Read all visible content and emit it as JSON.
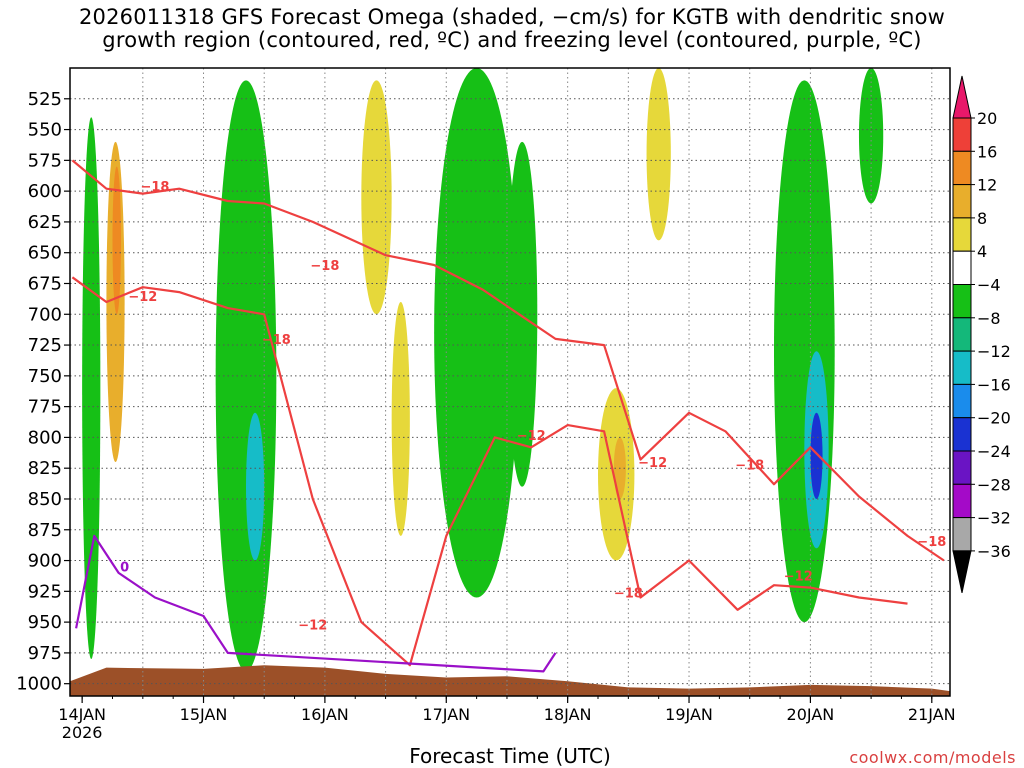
{
  "chart_data": {
    "type": "heatmap",
    "title_line1": "2026011318 GFS Forecast Omega (shaded, −cm/s) for KGTB with dendritic snow",
    "title_line2": "growth region (contoured, red, ºC) and freezing level (contoured, purple, ºC)",
    "xlabel": "Forecast Time (UTC)",
    "credit": "coolwx.com/models",
    "x_ticks": [
      "14JAN",
      "15JAN",
      "16JAN",
      "17JAN",
      "18JAN",
      "19JAN",
      "20JAN",
      "21JAN"
    ],
    "x_tick_sublabel": "2026",
    "x_range_days": [
      13.9,
      21.15
    ],
    "y_ticks": [
      525,
      550,
      575,
      600,
      625,
      650,
      675,
      700,
      725,
      750,
      775,
      800,
      825,
      850,
      875,
      900,
      925,
      950,
      975,
      1000
    ],
    "y_range_hPa": [
      500,
      1010
    ],
    "colorbar_levels": [
      "20",
      "16",
      "12",
      "8",
      "4",
      "−4",
      "−8",
      "−12",
      "−16",
      "−20",
      "−24",
      "−28",
      "−32",
      "−36"
    ],
    "colorbar_colors": [
      "#e8186a",
      "#ee4038",
      "#ee8a22",
      "#e8ae2c",
      "#e6d83a",
      "#ffffff",
      "#16c016",
      "#14b87a",
      "#16bcc8",
      "#1a8cec",
      "#1a32d2",
      "#6a14c4",
      "#a40ac8",
      "#a8a8a8",
      "#000000"
    ],
    "contour_labels_red": [
      "−18",
      "−12",
      "−18",
      "−18",
      "−12",
      "−12",
      "−18",
      "−12",
      "−18",
      "−12",
      "−18"
    ],
    "contour_labels_purple": [
      "0"
    ],
    "series": [
      {
        "name": "dendritic_growth_top (−18C level, hPa)",
        "x_day": [
          13.92,
          14.2,
          14.5,
          14.8,
          15.2,
          15.5,
          15.9,
          16.5,
          16.9,
          17.3,
          17.6,
          17.9,
          18.3,
          18.6,
          19.0,
          19.3,
          19.7,
          20.0,
          20.4,
          20.8,
          21.1
        ],
        "pressure_hPa": [
          575,
          598,
          602,
          598,
          608,
          610,
          625,
          652,
          660,
          680,
          700,
          720,
          725,
          818,
          780,
          795,
          838,
          808,
          848,
          880,
          900
        ]
      },
      {
        "name": "dendritic_growth_bottom (−12C level, hPa)",
        "x_day": [
          13.92,
          14.2,
          14.5,
          14.8,
          15.2,
          15.5,
          15.9,
          16.3,
          16.7,
          17.0,
          17.4,
          17.7,
          18.0,
          18.3,
          18.6,
          19.0,
          19.4,
          19.7,
          20.0,
          20.4,
          20.8
        ],
        "pressure_hPa": [
          670,
          690,
          678,
          682,
          695,
          700,
          850,
          950,
          985,
          880,
          800,
          808,
          790,
          795,
          930,
          900,
          940,
          920,
          922,
          930,
          935
        ]
      },
      {
        "name": "freezing_level (0C, hPa)",
        "x_day": [
          13.95,
          14.1,
          14.3,
          14.6,
          15.0,
          15.2,
          17.8,
          17.9
        ],
        "pressure_hPa": [
          955,
          880,
          910,
          930,
          945,
          975,
          990,
          975
        ]
      }
    ],
    "omega_shaded_regions_cm_s": [
      {
        "x_day": [
          14.0,
          14.15
        ],
        "p": [
          540,
          980
        ],
        "value": -6
      },
      {
        "x_day": [
          14.2,
          14.35
        ],
        "p": [
          560,
          820
        ],
        "value": 10
      },
      {
        "x_day": [
          14.25,
          14.32
        ],
        "p": [
          580,
          700
        ],
        "value": 13
      },
      {
        "x_day": [
          15.1,
          15.6
        ],
        "p": [
          510,
          990
        ],
        "value": -6
      },
      {
        "x_day": [
          15.35,
          15.5
        ],
        "p": [
          780,
          900
        ],
        "value": -12
      },
      {
        "x_day": [
          16.3,
          16.55
        ],
        "p": [
          510,
          700
        ],
        "value": 5
      },
      {
        "x_day": [
          16.55,
          16.7
        ],
        "p": [
          690,
          880
        ],
        "value": 5
      },
      {
        "x_day": [
          16.9,
          17.6
        ],
        "p": [
          500,
          930
        ],
        "value": -6
      },
      {
        "x_day": [
          17.5,
          17.75
        ],
        "p": [
          560,
          840
        ],
        "value": -5
      },
      {
        "x_day": [
          18.25,
          18.55
        ],
        "p": [
          760,
          900
        ],
        "value": 6
      },
      {
        "x_day": [
          18.38,
          18.48
        ],
        "p": [
          800,
          850
        ],
        "value": 10
      },
      {
        "x_day": [
          18.65,
          18.85
        ],
        "p": [
          500,
          640
        ],
        "value": 6
      },
      {
        "x_day": [
          19.7,
          20.2
        ],
        "p": [
          510,
          950
        ],
        "value": -6
      },
      {
        "x_day": [
          19.95,
          20.15
        ],
        "p": [
          730,
          890
        ],
        "value": -15
      },
      {
        "x_day": [
          20.0,
          20.1
        ],
        "p": [
          780,
          850
        ],
        "value": -22
      },
      {
        "x_day": [
          20.4,
          20.6
        ],
        "p": [
          500,
          610
        ],
        "value": -6
      }
    ]
  }
}
